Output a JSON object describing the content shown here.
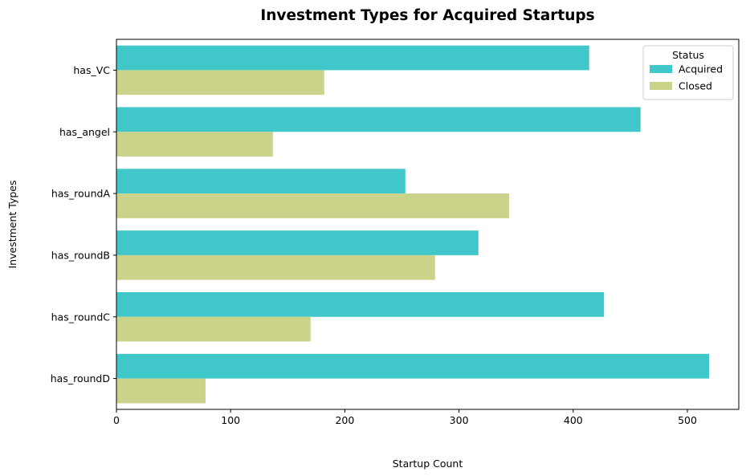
{
  "chart_data": {
    "type": "bar",
    "orientation": "horizontal",
    "title": "Investment Types for Acquired Startups",
    "xlabel": "Startup Count",
    "ylabel": "Investment Types",
    "categories": [
      "has_VC",
      "has_angel",
      "has_roundA",
      "has_roundB",
      "has_roundC",
      "has_roundD"
    ],
    "series": [
      {
        "name": "Acquired",
        "color": "#40c7c9",
        "values": [
          414,
          459,
          253,
          317,
          427,
          519
        ]
      },
      {
        "name": "Closed",
        "color": "#cbd38a",
        "values": [
          182,
          137,
          344,
          279,
          170,
          78
        ]
      }
    ],
    "xlim": [
      0,
      545
    ],
    "xticks": [
      0,
      100,
      200,
      300,
      400,
      500
    ],
    "grid": false,
    "legend": {
      "title": "Status",
      "position": "top-right"
    }
  }
}
